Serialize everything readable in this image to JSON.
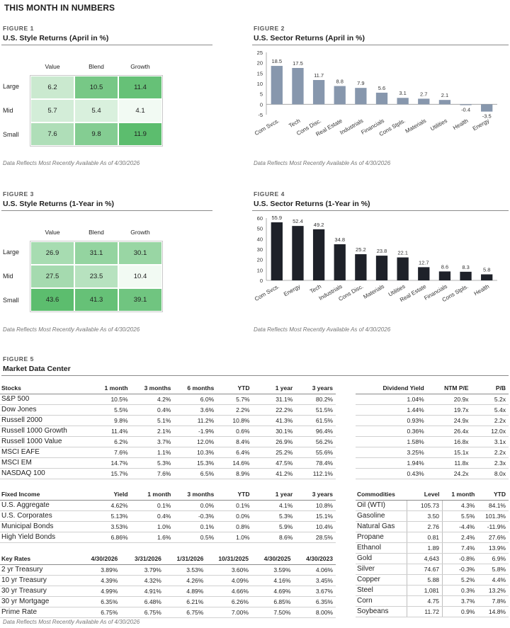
{
  "page_title": "THIS MONTH IN NUMBERS",
  "figure1": {
    "label": "FIGURE 1",
    "title": "U.S. Style Returns (April in %)",
    "columns": [
      "Value",
      "Blend",
      "Growth"
    ],
    "rows": [
      "Large",
      "Mid",
      "Small"
    ],
    "values": [
      [
        "6.2",
        "10.5",
        "11.4"
      ],
      [
        "5.7",
        "5.4",
        "4.1"
      ],
      [
        "7.6",
        "9.8",
        "11.9"
      ]
    ],
    "note": "Data Reflects Most Recently Available As of 4/30/2026"
  },
  "figure2": {
    "label": "FIGURE 2",
    "title": "U.S. Sector Returns (April in %)",
    "note": "Data Reflects Most Recently Available As of 4/30/2026"
  },
  "figure3": {
    "label": "FIGURE 3",
    "title": "U.S. Style Returns (1-Year in %)",
    "columns": [
      "Value",
      "Blend",
      "Growth"
    ],
    "rows": [
      "Large",
      "Mid",
      "Small"
    ],
    "values": [
      [
        "26.9",
        "31.1",
        "30.1"
      ],
      [
        "27.5",
        "23.5",
        "10.4"
      ],
      [
        "43.6",
        "41.3",
        "39.1"
      ]
    ],
    "note": "Data Reflects Most Recently Available As of 4/30/2026"
  },
  "figure4": {
    "label": "FIGURE 4",
    "title": "U.S. Sector Returns (1-Year in %)",
    "note": "Data Reflects Most Recently Available As of 4/30/2026"
  },
  "figure5": {
    "label": "FIGURE 5",
    "title": "Market Data Center",
    "note": "Data Reflects Most Recently Available As of 4/30/2026"
  },
  "colors": {
    "heat_high": "#5cbd6e",
    "heat_low": "#ffffff",
    "bar_blue": "#8797ad",
    "bar_dark": "#1e2129"
  },
  "chart_data": [
    {
      "type": "heatmap",
      "title": "U.S. Style Returns (April in %)",
      "x": [
        "Value",
        "Blend",
        "Growth"
      ],
      "y": [
        "Large",
        "Mid",
        "Small"
      ],
      "z": [
        [
          6.2,
          10.5,
          11.4
        ],
        [
          5.7,
          5.4,
          4.1
        ],
        [
          7.6,
          9.8,
          11.9
        ]
      ]
    },
    {
      "type": "bar",
      "title": "U.S. Sector Returns (April in %)",
      "categories": [
        "Com Svcs.",
        "Tech",
        "Cons Disc.",
        "Real Estate",
        "Industrials",
        "Financials",
        "Cons Stpls.",
        "Materials",
        "Utilities",
        "Health",
        "Energy"
      ],
      "values": [
        18.5,
        17.5,
        11.7,
        8.8,
        7.9,
        5.6,
        3.1,
        2.7,
        2.1,
        -0.4,
        -3.5
      ],
      "yticks": [
        -5,
        0,
        5,
        10,
        15,
        20,
        25
      ],
      "ylim": [
        -5,
        25
      ],
      "grid": false
    },
    {
      "type": "heatmap",
      "title": "U.S. Style Returns (1-Year in %)",
      "x": [
        "Value",
        "Blend",
        "Growth"
      ],
      "y": [
        "Large",
        "Mid",
        "Small"
      ],
      "z": [
        [
          26.9,
          31.1,
          30.1
        ],
        [
          27.5,
          23.5,
          10.4
        ],
        [
          43.6,
          41.3,
          39.1
        ]
      ]
    },
    {
      "type": "bar",
      "title": "U.S. Sector Returns (1-Year in %)",
      "categories": [
        "Com Svcs.",
        "Energy",
        "Tech",
        "Industrials",
        "Cons Disc.",
        "Materials",
        "Utilities",
        "Real Estate",
        "Financials",
        "Cons Stpls.",
        "Health"
      ],
      "values": [
        55.9,
        52.4,
        49.2,
        34.8,
        25.2,
        23.8,
        22.1,
        12.7,
        8.6,
        8.3,
        5.8
      ],
      "yticks": [
        0,
        10,
        20,
        30,
        40,
        50,
        60
      ],
      "ylim": [
        0,
        60
      ],
      "grid": false
    }
  ],
  "stocks": {
    "headers": [
      "Stocks",
      "1 month",
      "3 months",
      "6 months",
      "YTD",
      "1 year",
      "3 years"
    ],
    "rows": [
      [
        "S&P 500",
        "10.5%",
        "4.2%",
        "6.0%",
        "5.7%",
        "31.1%",
        "80.2%"
      ],
      [
        "Dow Jones",
        "5.5%",
        "0.4%",
        "3.6%",
        "2.2%",
        "22.2%",
        "51.5%"
      ],
      [
        "Russell 2000",
        "9.8%",
        "5.1%",
        "11.2%",
        "10.8%",
        "41.3%",
        "61.5%"
      ],
      [
        "Russell 1000 Growth",
        "11.4%",
        "2.1%",
        "-1.9%",
        "0.6%",
        "30.1%",
        "96.4%"
      ],
      [
        "Russell 1000 Value",
        "6.2%",
        "3.7%",
        "12.0%",
        "8.4%",
        "26.9%",
        "56.2%"
      ],
      [
        "MSCI EAFE",
        "7.6%",
        "1.1%",
        "10.3%",
        "6.4%",
        "25.2%",
        "55.6%"
      ],
      [
        "MSCI EM",
        "14.7%",
        "5.3%",
        "15.3%",
        "14.6%",
        "47.5%",
        "78.4%"
      ],
      [
        "NASDAQ 100",
        "15.7%",
        "7.6%",
        "6.5%",
        "8.9%",
        "41.2%",
        "112.1%"
      ]
    ]
  },
  "valuation": {
    "headers": [
      "Dividend Yield",
      "NTM P/E",
      "P/B"
    ],
    "rows": [
      [
        "1.04%",
        "20.9x",
        "5.2x"
      ],
      [
        "1.44%",
        "19.7x",
        "5.4x"
      ],
      [
        "0.93%",
        "24.9x",
        "2.2x"
      ],
      [
        "0.36%",
        "26.4x",
        "12.0x"
      ],
      [
        "1.58%",
        "16.8x",
        "3.1x"
      ],
      [
        "3.25%",
        "15.1x",
        "2.2x"
      ],
      [
        "1.94%",
        "11.8x",
        "2.3x"
      ],
      [
        "0.43%",
        "24.2x",
        "8.0x"
      ]
    ]
  },
  "fixed_income": {
    "headers": [
      "Fixed Income",
      "Yield",
      "1 month",
      "3 months",
      "YTD",
      "1 year",
      "3 years"
    ],
    "rows": [
      [
        "U.S. Aggregate",
        "4.62%",
        "0.1%",
        "0.0%",
        "0.1%",
        "4.1%",
        "10.8%"
      ],
      [
        "U.S. Corporates",
        "5.13%",
        "0.4%",
        "-0.3%",
        "0.0%",
        "5.3%",
        "15.1%"
      ],
      [
        "Municipal Bonds",
        "3.53%",
        "1.0%",
        "0.1%",
        "0.8%",
        "5.9%",
        "10.4%"
      ],
      [
        "High Yield Bonds",
        "6.86%",
        "1.6%",
        "0.5%",
        "1.0%",
        "8.6%",
        "28.5%"
      ]
    ]
  },
  "key_rates": {
    "headers": [
      "Key Rates",
      "4/30/2026",
      "3/31/2026",
      "1/31/2026",
      "10/31/2025",
      "4/30/2025",
      "4/30/2023"
    ],
    "rows": [
      [
        "2 yr Treasury",
        "3.89%",
        "3.79%",
        "3.53%",
        "3.60%",
        "3.59%",
        "4.06%"
      ],
      [
        "10 yr Treasury",
        "4.39%",
        "4.32%",
        "4.26%",
        "4.09%",
        "4.16%",
        "3.45%"
      ],
      [
        "30 yr Treasury",
        "4.99%",
        "4.91%",
        "4.89%",
        "4.66%",
        "4.69%",
        "3.67%"
      ],
      [
        "30 yr Mortgage",
        "6.35%",
        "6.48%",
        "6.21%",
        "6.26%",
        "6.85%",
        "6.35%"
      ],
      [
        "Prime Rate",
        "6.75%",
        "6.75%",
        "6.75%",
        "7.00%",
        "7.50%",
        "8.00%"
      ]
    ]
  },
  "commodities": {
    "headers": [
      "Commodities",
      "Level",
      "1 month",
      "YTD"
    ],
    "rows": [
      [
        "Oil (WTI)",
        "105.73",
        "4.3%",
        "84.1%"
      ],
      [
        "Gasoline",
        "3.50",
        "5.5%",
        "101.3%"
      ],
      [
        "Natural Gas",
        "2.76",
        "-4.4%",
        "-11.9%"
      ],
      [
        "Propane",
        "0.81",
        "2.4%",
        "27.6%"
      ],
      [
        "Ethanol",
        "1.89",
        "7.4%",
        "13.9%"
      ],
      [
        "Gold",
        "4,643",
        "-0.8%",
        "6.9%"
      ],
      [
        "Silver",
        "74.67",
        "-0.3%",
        "5.8%"
      ],
      [
        "Copper",
        "5.88",
        "5.2%",
        "4.4%"
      ],
      [
        "Steel",
        "1,081",
        "0.3%",
        "13.2%"
      ],
      [
        "Corn",
        "4.75",
        "3.7%",
        "7.8%"
      ],
      [
        "Soybeans",
        "11.72",
        "0.9%",
        "14.8%"
      ]
    ]
  }
}
